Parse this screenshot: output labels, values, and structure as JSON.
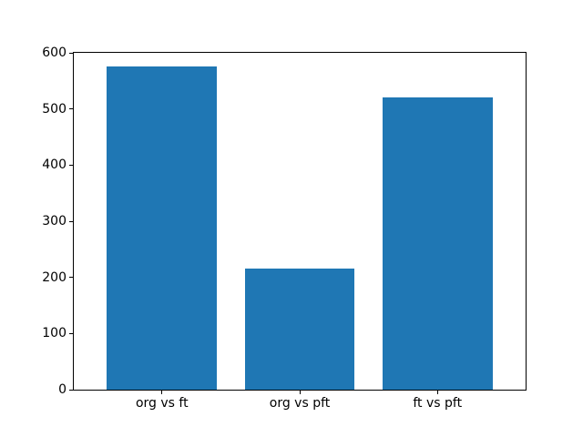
{
  "figure": {
    "background_color": "#ffffff",
    "spine_color": "#000000",
    "tick_label_color": "#000000"
  },
  "chart_data": {
    "type": "bar",
    "title": "",
    "xlabel": "",
    "ylabel": "",
    "categories": [
      "org vs ft",
      "org vs pft",
      "ft vs pft"
    ],
    "values": [
      575,
      215,
      521
    ],
    "ylim": [
      0,
      600
    ],
    "yticks": [
      0,
      100,
      200,
      300,
      400,
      500,
      600
    ],
    "bar_color": "#1f77b4",
    "bar_width_fraction": 0.8,
    "grid": false,
    "legend_position": "none"
  }
}
